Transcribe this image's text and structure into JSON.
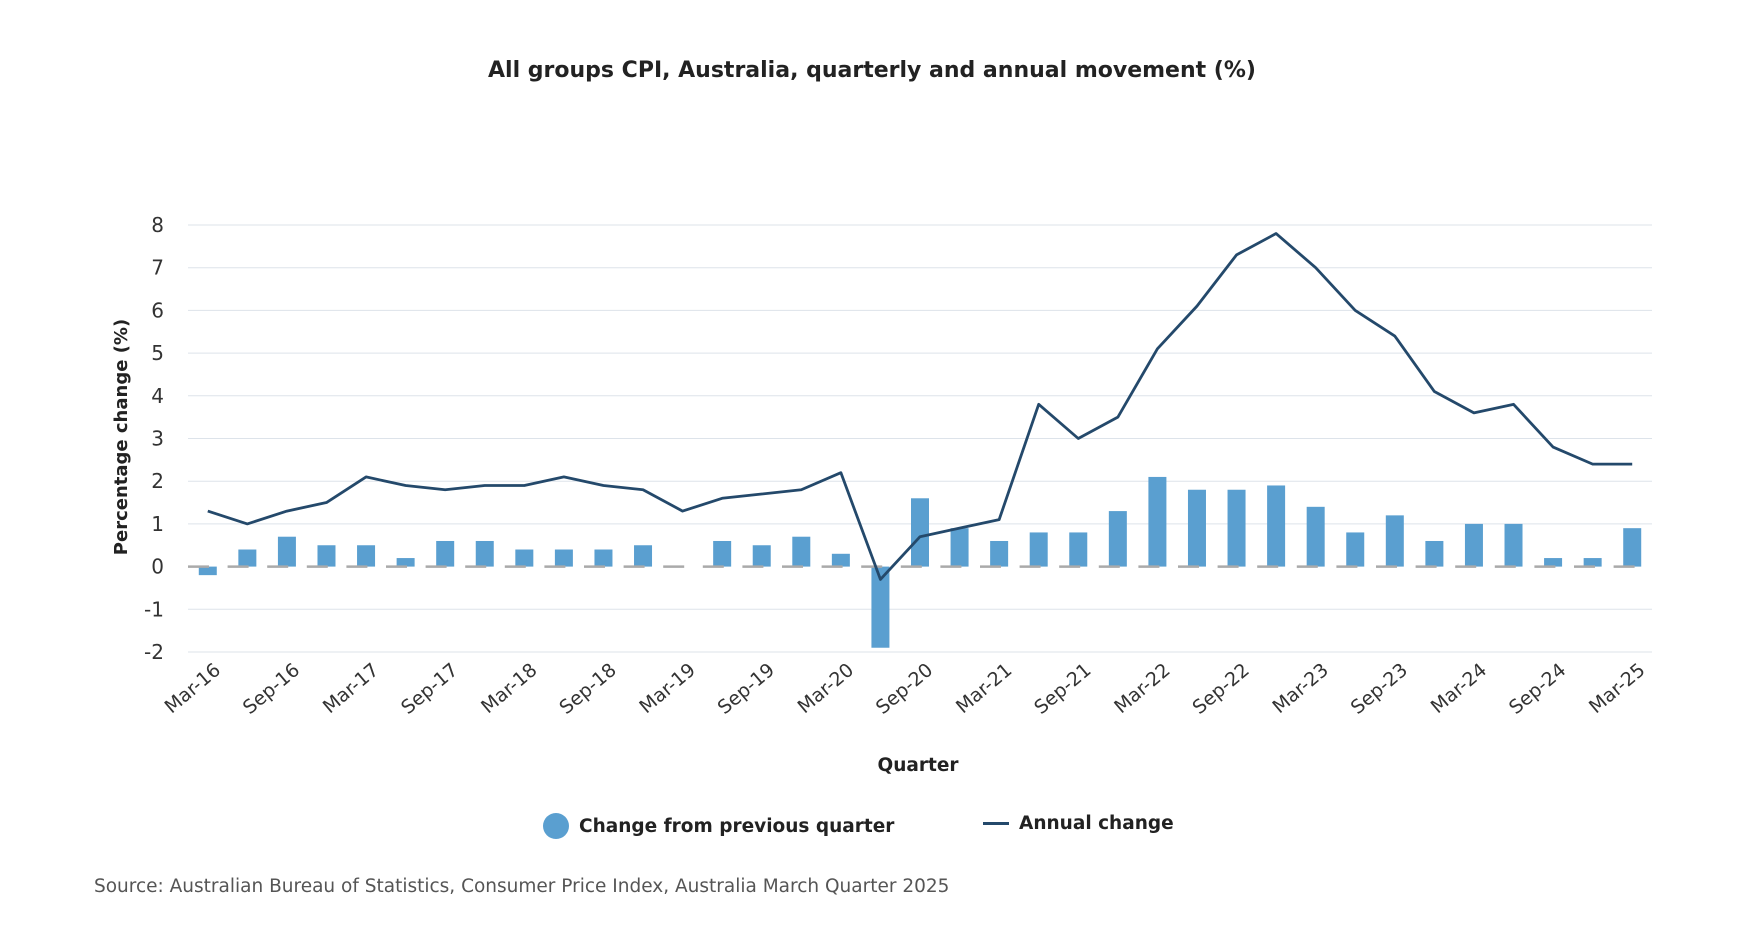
{
  "chart_data": {
    "type": "bar",
    "title": "All groups CPI, Australia, quarterly and annual movement (%)",
    "xlabel": "Quarter",
    "ylabel": "Percentage change (%)",
    "ylim": [
      -2,
      8
    ],
    "yticks": [
      "-2",
      "-1",
      "0",
      "1",
      "2",
      "3",
      "4",
      "5",
      "6",
      "7",
      "8"
    ],
    "grid": true,
    "legend_position": "bottom",
    "categories": [
      "Mar-16",
      "Jun-16",
      "Sep-16",
      "Dec-16",
      "Mar-17",
      "Jun-17",
      "Sep-17",
      "Dec-17",
      "Mar-18",
      "Jun-18",
      "Sep-18",
      "Dec-18",
      "Mar-19",
      "Jun-19",
      "Sep-19",
      "Dec-19",
      "Mar-20",
      "Jun-20",
      "Sep-20",
      "Dec-20",
      "Mar-21",
      "Jun-21",
      "Sep-21",
      "Dec-21",
      "Mar-22",
      "Jun-22",
      "Sep-22",
      "Dec-22",
      "Mar-23",
      "Jun-23",
      "Sep-23",
      "Dec-23",
      "Mar-24",
      "Jun-24",
      "Sep-24",
      "Dec-24",
      "Mar-25"
    ],
    "tick_labels": [
      "Mar-16",
      "Sep-16",
      "Mar-17",
      "Sep-17",
      "Mar-18",
      "Sep-18",
      "Mar-19",
      "Sep-19",
      "Mar-20",
      "Sep-20",
      "Mar-21",
      "Sep-21",
      "Mar-22",
      "Sep-22",
      "Mar-23",
      "Sep-23",
      "Mar-24",
      "Sep-24",
      "Mar-25"
    ],
    "series": [
      {
        "name": "Change from previous quarter",
        "type": "bar",
        "color": "#5a9fd0",
        "values": [
          -0.2,
          0.4,
          0.7,
          0.5,
          0.5,
          0.2,
          0.6,
          0.6,
          0.4,
          0.4,
          0.4,
          0.5,
          0.0,
          0.6,
          0.5,
          0.7,
          0.3,
          -1.9,
          1.6,
          0.9,
          0.6,
          0.8,
          0.8,
          1.3,
          2.1,
          1.8,
          1.8,
          1.9,
          1.4,
          0.8,
          1.2,
          0.6,
          1.0,
          1.0,
          0.2,
          0.2,
          0.9
        ]
      },
      {
        "name": "Annual change",
        "type": "line",
        "color": "#24496b",
        "values": [
          1.3,
          1.0,
          1.3,
          1.5,
          2.1,
          1.9,
          1.8,
          1.9,
          1.9,
          2.1,
          1.9,
          1.8,
          1.3,
          1.6,
          1.7,
          1.8,
          2.2,
          -0.3,
          0.7,
          0.9,
          1.1,
          3.8,
          3.0,
          3.5,
          5.1,
          6.1,
          7.3,
          7.8,
          7.0,
          6.0,
          5.4,
          4.1,
          3.6,
          3.8,
          2.8,
          2.4,
          2.4
        ]
      }
    ],
    "zero_line_color": "#aaaaaa",
    "source": "Source: Australian Bureau of Statistics, Consumer Price Index, Australia March Quarter 2025"
  }
}
